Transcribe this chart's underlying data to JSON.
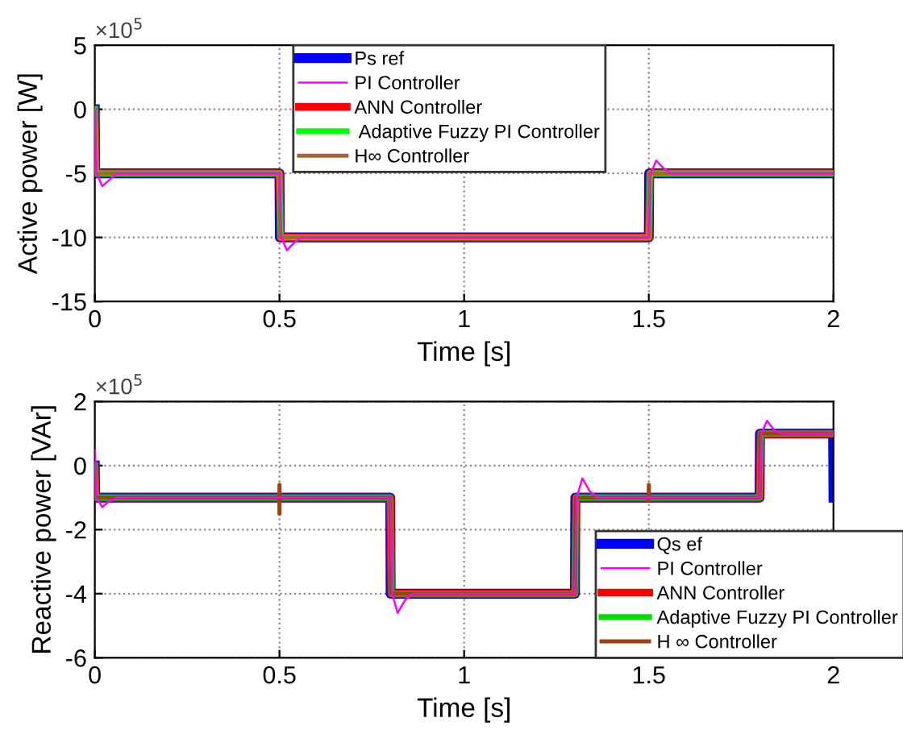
{
  "chart_data": [
    {
      "type": "line",
      "xlabel": "Time [s]",
      "ylabel": "Active power [W]",
      "annotations": [
        "×10$^{5}$"
      ],
      "xlim": [
        0,
        2
      ],
      "xticks": [
        0,
        0.5,
        1,
        1.5,
        2
      ],
      "ylim": [
        -15,
        5
      ],
      "yticks": [
        -15,
        -10,
        -5,
        0,
        5
      ],
      "grid": true,
      "legend": "top",
      "line_style": "solid",
      "marker": "none",
      "series": [
        {
          "name": "Ps ref",
          "color": "#0000ff",
          "x": [
            0,
            0.001,
            0.5,
            0.501,
            1.5,
            1.501,
            2
          ],
          "values": [
            0,
            -5,
            -5,
            -10,
            -10,
            -5,
            -5
          ]
        },
        {
          "name": "PI Controller",
          "color": "#ff00ff",
          "x": [
            0,
            0.005,
            0.02,
            0.04,
            0.06,
            0.5,
            0.505,
            0.52,
            0.54,
            0.56,
            1.5,
            1.505,
            1.52,
            1.54,
            1.56,
            2
          ],
          "values": [
            0,
            -5,
            -6,
            -5.5,
            -5,
            -5,
            -10,
            -11,
            -10.4,
            -10,
            -10,
            -5,
            -4,
            -4.6,
            -5,
            -5
          ]
        },
        {
          "name": "ANN Controller",
          "color": "#ff0000",
          "x": [
            0,
            0.003,
            0.5,
            0.503,
            1.5,
            1.503,
            2
          ],
          "values": [
            0,
            -5,
            -5,
            -10,
            -10,
            -5,
            -5
          ]
        },
        {
          "name": " Adaptive Fuzzy PI Controller",
          "color": "#00ff00",
          "x": [
            0,
            0.003,
            0.5,
            0.503,
            1.5,
            1.503,
            2
          ],
          "values": [
            0,
            -5,
            -5,
            -10,
            -10,
            -5,
            -5
          ]
        },
        {
          "name": "H∞ Controller",
          "color": "#b06030",
          "x": [
            0,
            0.002,
            0.5,
            0.502,
            1.5,
            1.502,
            2
          ],
          "values": [
            0,
            -5,
            -5,
            -10,
            -10,
            -5,
            -5
          ]
        }
      ]
    },
    {
      "type": "line",
      "xlabel": "Time [s]",
      "ylabel": "Reactive power [VAr]",
      "annotations": [
        "×10$^{5}$"
      ],
      "xlim": [
        0,
        2
      ],
      "xticks": [
        0,
        0.5,
        1,
        1.5,
        2
      ],
      "ylim": [
        -6,
        2
      ],
      "yticks": [
        -6,
        -4,
        -2,
        0,
        2
      ],
      "grid": true,
      "legend": "bottom right",
      "line_style": "solid",
      "marker": "none",
      "series": [
        {
          "name": "Qs ef",
          "color": "#0000ff",
          "x": [
            0,
            0.001,
            0.8,
            0.801,
            1.3,
            1.301,
            1.8,
            1.801,
            1.999,
            2
          ],
          "values": [
            0,
            -1,
            -1,
            -4,
            -4,
            -1,
            -1,
            1,
            1,
            -1
          ]
        },
        {
          "name": "PI Controller",
          "color": "#ff00ff",
          "x": [
            0,
            0.005,
            0.02,
            0.04,
            0.06,
            0.8,
            0.805,
            0.82,
            0.84,
            0.86,
            1.3,
            1.305,
            1.32,
            1.34,
            1.36,
            1.8,
            1.805,
            1.82,
            1.84,
            1.86,
            2
          ],
          "values": [
            0.5,
            -1,
            -1.3,
            -1.1,
            -1,
            -1,
            -4,
            -4.6,
            -4.2,
            -4,
            -4,
            -1,
            -0.4,
            -0.8,
            -1,
            -1,
            1,
            1.4,
            1.1,
            1,
            1
          ]
        },
        {
          "name": "ANN Controller",
          "color": "#ff0000",
          "x": [
            0,
            0.003,
            0.8,
            0.803,
            1.3,
            1.303,
            1.8,
            1.803,
            2
          ],
          "values": [
            0,
            -1,
            -1,
            -4,
            -4,
            -1,
            -1,
            1,
            1
          ]
        },
        {
          "name": "Adaptive Fuzzy PI Controller",
          "color": "#00dd00",
          "x": [
            0,
            0.003,
            0.8,
            0.803,
            1.3,
            1.303,
            1.8,
            1.803,
            2
          ],
          "values": [
            0,
            -1,
            -1,
            -4,
            -4,
            -1,
            -1,
            1,
            1
          ]
        },
        {
          "name": "H ∞ Controller",
          "color": "#a04010",
          "x": [
            0,
            0.002,
            0.5,
            0.5,
            0.5,
            0.5,
            0.8,
            0.802,
            1.3,
            1.302,
            1.5,
            1.5,
            1.5,
            1.5,
            1.8,
            1.802,
            2
          ],
          "values": [
            0,
            -1,
            -1,
            -0.6,
            -1.5,
            -1,
            -1,
            -4,
            -4,
            -1,
            -1,
            -0.6,
            -1.1,
            -1,
            -1,
            1,
            1
          ]
        }
      ]
    }
  ]
}
